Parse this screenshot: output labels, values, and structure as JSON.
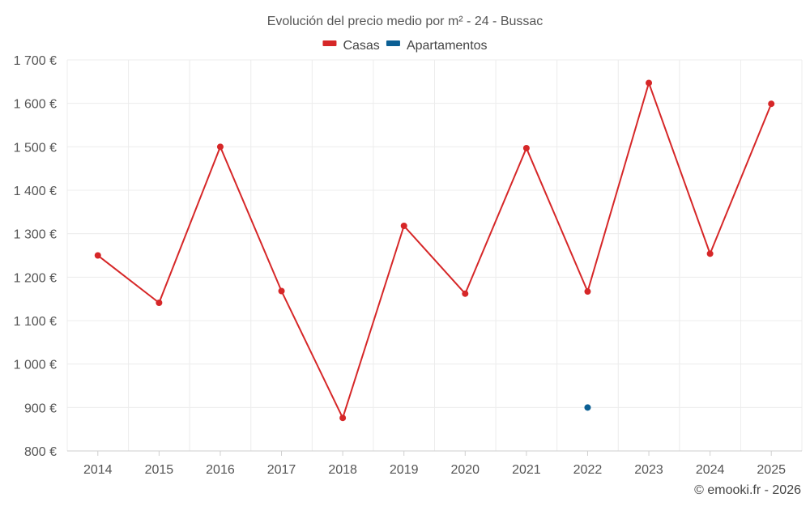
{
  "chart_data": {
    "type": "line",
    "title": "Evolución del precio medio por m² - 24 - Bussac",
    "categories": [
      "2014",
      "2015",
      "2016",
      "2017",
      "2018",
      "2019",
      "2020",
      "2021",
      "2022",
      "2023",
      "2024",
      "2025"
    ],
    "series": [
      {
        "name": "Casas",
        "color": "#d62728",
        "values": [
          1250,
          1141,
          1500,
          1168,
          876,
          1318,
          1162,
          1497,
          1167,
          1647,
          1254,
          1599
        ]
      },
      {
        "name": "Apartamentos",
        "color": "#0b5f94",
        "values": [
          null,
          null,
          null,
          null,
          null,
          null,
          null,
          null,
          900,
          null,
          null,
          null
        ]
      }
    ],
    "ylim": [
      800,
      1700
    ],
    "yticks": [
      800,
      900,
      1000,
      1100,
      1200,
      1300,
      1400,
      1500,
      1600,
      1700
    ],
    "ytick_labels": [
      "800 €",
      "900 €",
      "1 000 €",
      "1 100 €",
      "1 200 €",
      "1 300 €",
      "1 400 €",
      "1 500 €",
      "1 600 €",
      "1 700 €"
    ],
    "xlabel": "",
    "ylabel": "",
    "grid": true,
    "legend_position": "top-center"
  },
  "credit": "© emooki.fr - 2026"
}
